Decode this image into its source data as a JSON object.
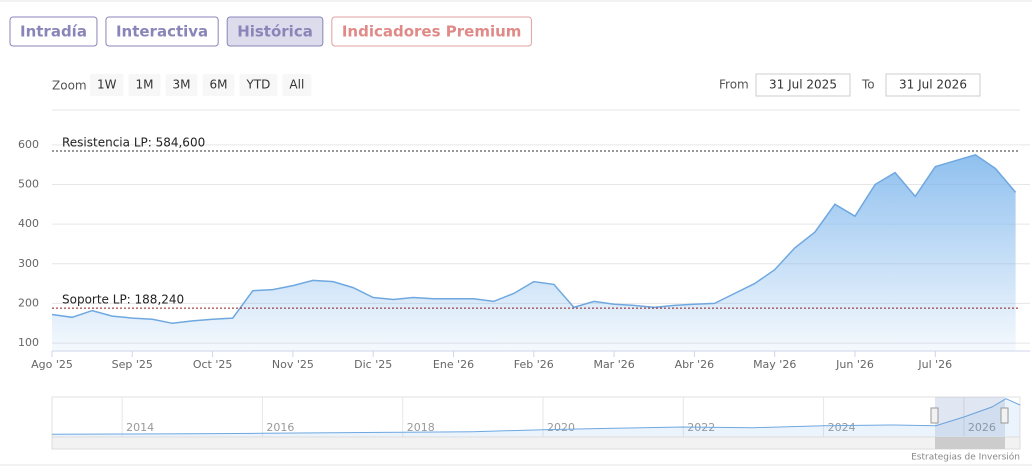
{
  "toolbar": {
    "tabs": [
      "Intradía",
      "Interactiva",
      "Histórica",
      "Indicadores Premium"
    ],
    "zoom_label": "Zoom",
    "zoom_buttons": [
      "1W",
      "1M",
      "3M",
      "6M",
      "YTD",
      "All"
    ],
    "from_label": "From",
    "from": "31 Jul 2025",
    "to_label": "To",
    "to": "31 Jul 2026"
  },
  "chart_data": {
    "type": "area",
    "color": "#6fa8e0",
    "categories": [
      "Ago '25",
      null,
      null,
      null,
      "Sep '25",
      null,
      null,
      null,
      "Oct '25",
      null,
      null,
      null,
      "Nov '25",
      null,
      null,
      null,
      "Dic '25",
      null,
      null,
      null,
      "Ene '26",
      null,
      null,
      null,
      "Feb '26",
      null,
      null,
      null,
      "Mar '26",
      null,
      null,
      null,
      "Abr '26",
      null,
      null,
      null,
      "May '26",
      null,
      null,
      null,
      "Jun '26",
      null,
      null,
      null,
      "Jul '26",
      null,
      null,
      null,
      null
    ],
    "values": [
      172,
      165,
      182,
      168,
      163,
      160,
      150,
      156,
      160,
      163,
      232,
      235,
      245,
      258,
      255,
      240,
      215,
      210,
      215,
      212,
      212,
      212,
      205,
      225,
      255,
      248,
      190,
      205,
      198,
      195,
      190,
      195,
      198,
      200,
      225,
      250,
      285,
      340,
      380,
      450,
      420,
      500,
      530,
      470,
      545,
      560,
      575,
      540,
      480
    ],
    "ylim": [
      80,
      640
    ],
    "yticks": [
      100,
      200,
      300,
      400,
      500,
      600
    ],
    "grid": true,
    "plot_lines": [
      {
        "label": "Resistencia LP: 584,600",
        "value": 584.6,
        "color": "#333333"
      },
      {
        "label": "Soporte LP: 188,240",
        "value": 188.24,
        "color": "#8b1a1a"
      }
    ],
    "navigator": {
      "x": [
        2013,
        2014,
        2015,
        2016,
        2017,
        2018,
        2019,
        2020,
        2021,
        2022,
        2023,
        2024,
        2025,
        2025.6,
        2026,
        2026.4,
        2026.6,
        2026.8
      ],
      "values": [
        40,
        45,
        50,
        55,
        65,
        70,
        80,
        110,
        130,
        150,
        140,
        170,
        180,
        170,
        300,
        450,
        575,
        480
      ],
      "xlim": [
        2013,
        2026.8
      ],
      "xticks": [
        2014,
        2016,
        2018,
        2020,
        2022,
        2024,
        2026
      ],
      "ylim": [
        0,
        600
      ]
    }
  },
  "credit": "Estrategias de Inversión"
}
